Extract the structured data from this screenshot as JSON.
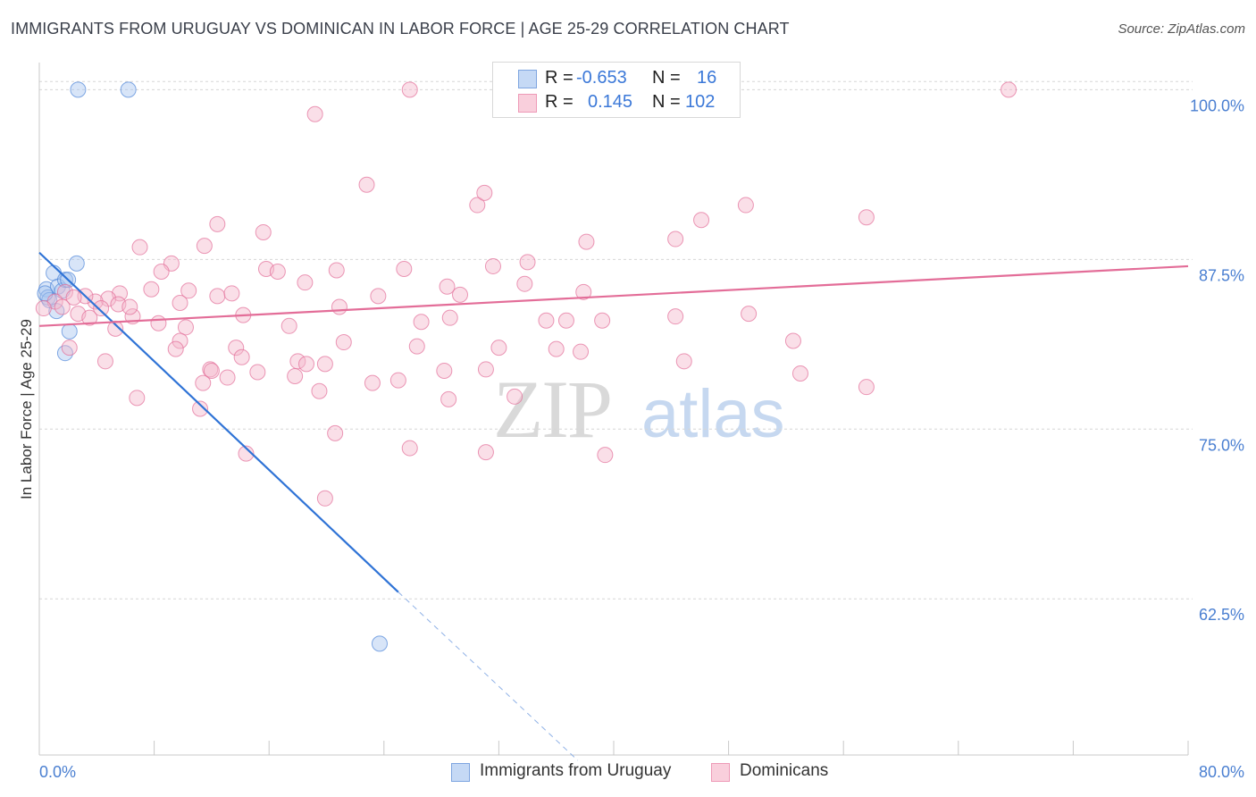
{
  "title": "IMMIGRANTS FROM URUGUAY VS DOMINICAN IN LABOR FORCE | AGE 25-29 CORRELATION CHART",
  "source": "Source: ZipAtlas.com",
  "watermark": {
    "zip": "ZIP",
    "atlas": "atlas"
  },
  "legend": {
    "rows": [
      {
        "r_label": "R =",
        "r_value": "-0.653",
        "n_label": "N =",
        "n_value": "16",
        "color": "#a9c6f0"
      },
      {
        "r_label": "R =",
        "r_value": "0.145",
        "n_label": "N =",
        "n_value": "102",
        "color": "#f5b8cb"
      }
    ]
  },
  "bottom_legend": [
    "Immigrants from Uruguay",
    "Dominicans"
  ],
  "chart_data": {
    "type": "scatter",
    "xlabel": "",
    "ylabel": "In Labor Force | Age 25-29",
    "xlim": [
      0,
      80
    ],
    "ylim": [
      51,
      102
    ],
    "x_tick_labels": [
      "0.0%",
      "80.0%"
    ],
    "y_ticks": [
      62.5,
      75.0,
      87.5,
      100.0
    ],
    "y_tick_labels": [
      "62.5%",
      "75.0%",
      "87.5%",
      "100.0%"
    ],
    "grid": true,
    "legend_position": "top-center",
    "series": [
      {
        "name": "Immigrants from Uruguay",
        "color": "#4f86d9",
        "fill": "#a9c6f0",
        "points": [
          [
            2.7,
            100
          ],
          [
            6.2,
            100
          ],
          [
            0.5,
            85.3
          ],
          [
            0.6,
            84.7
          ],
          [
            0.7,
            84.5
          ],
          [
            1.0,
            86.5
          ],
          [
            1.3,
            85.5
          ],
          [
            1.6,
            85.2
          ],
          [
            1.8,
            86.0
          ],
          [
            2.6,
            87.2
          ],
          [
            2.0,
            86.0
          ],
          [
            1.2,
            83.7
          ],
          [
            2.1,
            82.2
          ],
          [
            1.8,
            80.6
          ],
          [
            0.4,
            85.0
          ],
          [
            23.7,
            59.2
          ]
        ],
        "trend": {
          "x0": 0,
          "y0": 88.0,
          "x1": 25.0,
          "y1": 63.0,
          "dash_x1": 37.5,
          "dash_y1": 50.6
        }
      },
      {
        "name": "Dominicans",
        "color": "#e36d98",
        "fill": "#f5b8cb",
        "points": [
          [
            25.8,
            100
          ],
          [
            32.5,
            100
          ],
          [
            67.5,
            100
          ],
          [
            19.2,
            98.2
          ],
          [
            22.8,
            93.0
          ],
          [
            30.5,
            91.5
          ],
          [
            31.0,
            92.4
          ],
          [
            49.2,
            91.5
          ],
          [
            57.6,
            90.6
          ],
          [
            46.1,
            90.4
          ],
          [
            38.1,
            88.8
          ],
          [
            44.3,
            89.0
          ],
          [
            12.4,
            90.1
          ],
          [
            15.6,
            89.5
          ],
          [
            11.5,
            88.5
          ],
          [
            7.0,
            88.4
          ],
          [
            9.2,
            87.2
          ],
          [
            15.8,
            86.8
          ],
          [
            16.6,
            86.6
          ],
          [
            20.7,
            86.7
          ],
          [
            25.4,
            86.8
          ],
          [
            31.6,
            87.0
          ],
          [
            34.0,
            87.3
          ],
          [
            8.5,
            86.6
          ],
          [
            18.5,
            85.8
          ],
          [
            28.4,
            85.5
          ],
          [
            33.8,
            85.7
          ],
          [
            5.6,
            85.0
          ],
          [
            7.8,
            85.3
          ],
          [
            10.4,
            85.2
          ],
          [
            12.4,
            84.8
          ],
          [
            13.4,
            85.0
          ],
          [
            23.6,
            84.8
          ],
          [
            29.3,
            84.9
          ],
          [
            37.9,
            85.1
          ],
          [
            9.8,
            84.3
          ],
          [
            4.8,
            84.6
          ],
          [
            5.5,
            84.2
          ],
          [
            3.9,
            84.4
          ],
          [
            3.2,
            84.8
          ],
          [
            1.8,
            85.1
          ],
          [
            2.4,
            84.7
          ],
          [
            1.1,
            84.4
          ],
          [
            0.3,
            83.9
          ],
          [
            2.7,
            83.5
          ],
          [
            3.5,
            83.2
          ],
          [
            4.3,
            83.9
          ],
          [
            6.5,
            83.3
          ],
          [
            8.3,
            82.8
          ],
          [
            10.2,
            82.5
          ],
          [
            14.2,
            83.4
          ],
          [
            17.4,
            82.6
          ],
          [
            20.9,
            84.0
          ],
          [
            26.6,
            82.9
          ],
          [
            28.6,
            83.2
          ],
          [
            39.2,
            83.0
          ],
          [
            44.3,
            83.3
          ],
          [
            49.4,
            83.5
          ],
          [
            36.7,
            83.0
          ],
          [
            35.3,
            83.0
          ],
          [
            9.8,
            81.5
          ],
          [
            13.7,
            81.0
          ],
          [
            14.1,
            80.3
          ],
          [
            21.2,
            81.4
          ],
          [
            26.3,
            81.1
          ],
          [
            32.0,
            81.0
          ],
          [
            36.0,
            80.9
          ],
          [
            37.7,
            80.7
          ],
          [
            44.9,
            80.0
          ],
          [
            52.5,
            81.5
          ],
          [
            9.5,
            80.9
          ],
          [
            11.9,
            79.4
          ],
          [
            12.0,
            79.3
          ],
          [
            15.2,
            79.2
          ],
          [
            18.0,
            80.0
          ],
          [
            18.6,
            79.8
          ],
          [
            19.9,
            79.8
          ],
          [
            28.2,
            79.3
          ],
          [
            31.1,
            79.4
          ],
          [
            13.1,
            78.8
          ],
          [
            11.4,
            78.4
          ],
          [
            17.8,
            78.9
          ],
          [
            23.2,
            78.4
          ],
          [
            25.0,
            78.6
          ],
          [
            53.0,
            79.1
          ],
          [
            57.6,
            78.1
          ],
          [
            6.8,
            77.3
          ],
          [
            11.2,
            76.5
          ],
          [
            19.5,
            77.8
          ],
          [
            28.5,
            77.2
          ],
          [
            33.1,
            77.4
          ],
          [
            20.6,
            74.7
          ],
          [
            14.4,
            73.2
          ],
          [
            25.8,
            73.6
          ],
          [
            31.1,
            73.3
          ],
          [
            39.4,
            73.1
          ],
          [
            19.9,
            69.9
          ],
          [
            4.6,
            80.0
          ],
          [
            2.1,
            81.0
          ],
          [
            5.3,
            82.4
          ],
          [
            1.6,
            84.0
          ],
          [
            6.3,
            84.0
          ]
        ],
        "trend": {
          "x0": 0,
          "y0": 82.6,
          "x1": 80,
          "y1": 87.0
        }
      }
    ]
  }
}
